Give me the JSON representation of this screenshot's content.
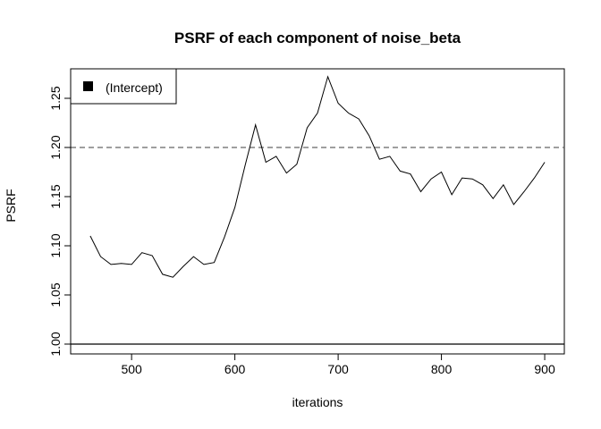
{
  "chart_data": {
    "type": "line",
    "title": "PSRF of each component of noise_beta",
    "xlabel": "iterations",
    "ylabel": "PSRF",
    "xlim": [
      441,
      919
    ],
    "ylim": [
      0.99,
      1.28
    ],
    "x_ticks": [
      500,
      600,
      700,
      800,
      900
    ],
    "y_ticks": [
      1.0,
      1.05,
      1.1,
      1.15,
      1.2,
      1.25
    ],
    "x_tick_labels": [
      "500",
      "600",
      "700",
      "800",
      "900"
    ],
    "y_tick_labels": [
      "1.00",
      "1.05",
      "1.10",
      "1.15",
      "1.20",
      "1.25"
    ],
    "grid": false,
    "legend_position": "top-left",
    "reference_lines": [
      {
        "y": 1.2,
        "style": "dashed",
        "color": "#666666"
      },
      {
        "y": 1.0,
        "style": "solid",
        "color": "#000000"
      }
    ],
    "series": [
      {
        "name": "(Intercept)",
        "color": "#000000",
        "x": [
          460,
          470,
          480,
          490,
          500,
          510,
          520,
          530,
          540,
          550,
          560,
          570,
          580,
          590,
          600,
          610,
          620,
          630,
          640,
          650,
          660,
          670,
          680,
          690,
          700,
          710,
          720,
          730,
          740,
          750,
          760,
          770,
          780,
          790,
          800,
          810,
          820,
          830,
          840,
          850,
          860,
          870,
          880,
          890,
          900
        ],
        "values": [
          1.11,
          1.089,
          1.081,
          1.082,
          1.081,
          1.093,
          1.09,
          1.071,
          1.068,
          1.079,
          1.089,
          1.081,
          1.083,
          1.109,
          1.139,
          1.182,
          1.223,
          1.185,
          1.191,
          1.174,
          1.183,
          1.22,
          1.235,
          1.272,
          1.245,
          1.235,
          1.229,
          1.212,
          1.188,
          1.191,
          1.176,
          1.173,
          1.155,
          1.168,
          1.175,
          1.152,
          1.169,
          1.168,
          1.162,
          1.148,
          1.162,
          1.142,
          1.155,
          1.169,
          1.185
        ]
      }
    ]
  }
}
